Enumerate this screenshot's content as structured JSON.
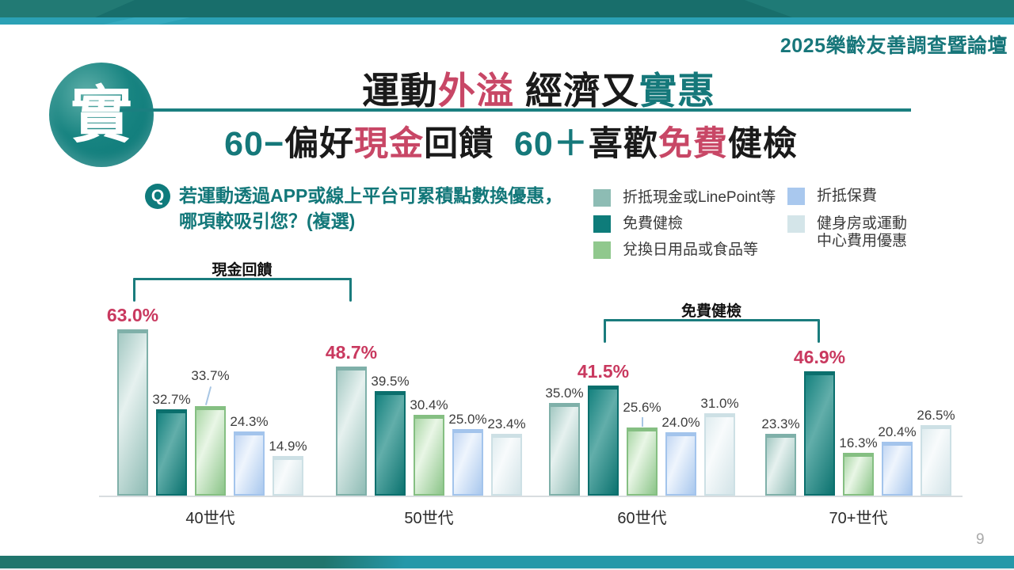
{
  "banner": {
    "forum_title": "2025樂齡友善調查暨論壇"
  },
  "badge": {
    "character": "實"
  },
  "title": {
    "segments": [
      {
        "text": "運動",
        "color": "dark"
      },
      {
        "text": "外溢",
        "color": "pink"
      },
      {
        "text": " 經濟又",
        "color": "dark"
      },
      {
        "text": "實惠",
        "color": "teal"
      }
    ]
  },
  "subtitle": {
    "segments": [
      {
        "text": "60−",
        "color": "teal"
      },
      {
        "text": "偏好",
        "color": "dark"
      },
      {
        "text": "現金",
        "color": "pink"
      },
      {
        "text": "回饋  ",
        "color": "dark"
      },
      {
        "text": "60＋",
        "color": "teal"
      },
      {
        "text": "喜歡",
        "color": "dark"
      },
      {
        "text": "免費",
        "color": "pink"
      },
      {
        "text": "健檢",
        "color": "dark"
      }
    ]
  },
  "question": {
    "badge_label": "Q",
    "line1": "若運動透過APP或線上平台可累積點數換優惠，",
    "line2": "哪項較吸引您？(複選)"
  },
  "legend": {
    "items": [
      {
        "label": "折抵現金或LinePoint等",
        "color": "#8dbcb4"
      },
      {
        "label": "免費健檢",
        "color": "#0e7c7a"
      },
      {
        "label": "兌換日用品或食品等",
        "color": "#90c88d"
      },
      {
        "label": "折抵保費",
        "color": "#a9c8ee"
      },
      {
        "label": "健身房或運動中心費用優惠",
        "line1": "健身房或運動",
        "line2": "中心費用優惠",
        "color": "#d4e5e9"
      }
    ]
  },
  "chart_data": {
    "type": "bar",
    "categories": [
      "40世代",
      "50世代",
      "60世代",
      "70+世代"
    ],
    "series": [
      {
        "name": "折抵現金或LinePoint等",
        "color": "#8dbcb4",
        "values": [
          63.0,
          48.7,
          35.0,
          23.3
        ],
        "labels": [
          "63.0%",
          "48.7%",
          "35.0%",
          "23.3%"
        ]
      },
      {
        "name": "免費健檢",
        "color": "#0e7c7a",
        "values": [
          32.7,
          39.5,
          41.5,
          46.9
        ],
        "labels": [
          "32.7%",
          "39.5%",
          "41.5%",
          "46.9%"
        ]
      },
      {
        "name": "兌換日用品或食品等",
        "color": "#90c88d",
        "values": [
          33.7,
          30.4,
          25.6,
          16.3
        ],
        "labels": [
          "33.7%",
          "30.4%",
          "25.6%",
          "16.3%"
        ]
      },
      {
        "name": "折抵保費",
        "color": "#a9c8ee",
        "values": [
          24.3,
          25.0,
          24.0,
          20.4
        ],
        "labels": [
          "24.3%",
          "25.0%",
          "24.0%",
          "20.4%"
        ]
      },
      {
        "name": "健身房或運動中心費用優惠",
        "color": "#d4e5e9",
        "values": [
          14.9,
          23.4,
          31.0,
          26.5
        ],
        "labels": [
          "14.9%",
          "23.4%",
          "31.0%",
          "26.5%"
        ]
      }
    ],
    "emphasized_series_by_group": [
      0,
      0,
      1,
      1
    ],
    "emphasis_color": "#c9395f",
    "brackets": [
      {
        "label": "現金回饋",
        "from_group": 0,
        "from_series": 0,
        "to_group": 1,
        "to_series": 0
      },
      {
        "label": "免費健檢",
        "from_group": 2,
        "from_series": 1,
        "to_group": 3,
        "to_series": 1
      }
    ],
    "raised_labels": [
      {
        "group": 0,
        "series": 2
      },
      {
        "group": 2,
        "series": 2
      }
    ],
    "ylim": [
      0,
      70
    ],
    "grid": false,
    "legend_position": "top-right"
  },
  "page_number": "9"
}
